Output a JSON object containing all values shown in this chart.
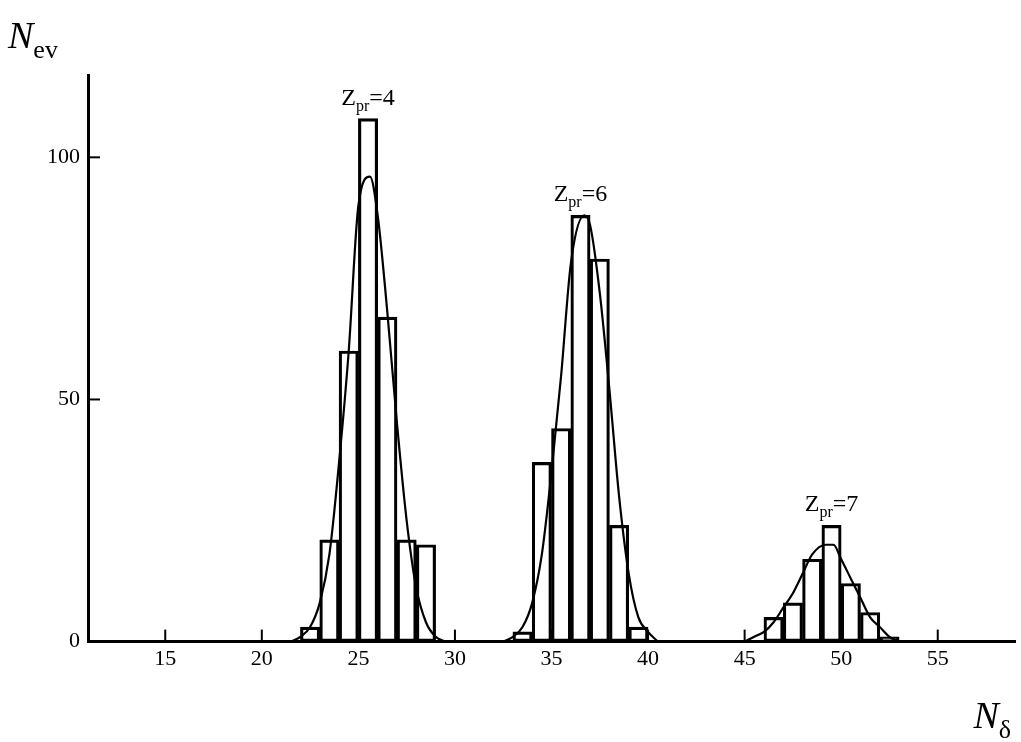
{
  "chart_data": {
    "type": "bar",
    "xlabel": "N$_{δ}$",
    "ylabel": "N$_{ev}$",
    "series": [
      {
        "color": "#000000",
        "x": [
          22.5,
          23.5,
          24.5,
          25.5,
          26.5,
          27.5,
          28.5
        ],
        "values": [
          3,
          21,
          60,
          108,
          67,
          21,
          20
        ]
      },
      {
        "color": "#000000",
        "x": [
          33.5,
          34.5,
          35.5,
          36.5,
          37.5,
          38.5,
          39.5
        ],
        "values": [
          2,
          37,
          44,
          88,
          79,
          24,
          3
        ]
      },
      {
        "color": "#000000",
        "x": [
          46.5,
          47.5,
          48.5,
          49.5,
          50.5,
          51.5,
          52.5
        ],
        "values": [
          5,
          8,
          17,
          24,
          12,
          6,
          1
        ]
      },
      {
        "type": "line",
        "color": "#000000",
        "x": [
          21.5,
          22,
          22.5,
          23,
          23.5,
          24,
          24.5,
          25,
          25.6,
          26,
          26.5,
          27,
          27.5,
          28,
          28.5,
          29,
          29.5
        ],
        "values": [
          0,
          1,
          3,
          8,
          18,
          37,
          60,
          90,
          96,
          88,
          68,
          45,
          25,
          11,
          4,
          1,
          0
        ]
      },
      {
        "type": "line",
        "color": "#000000",
        "x": [
          32.5,
          33,
          33.5,
          34,
          34.5,
          35,
          35.5,
          36,
          36.7,
          37,
          37.5,
          38,
          38.5,
          39,
          39.5,
          40,
          40.5
        ],
        "values": [
          0,
          1,
          3,
          8,
          18,
          35,
          55,
          78,
          88,
          86,
          72,
          52,
          30,
          14,
          5,
          2,
          0
        ]
      },
      {
        "type": "line",
        "color": "#000000",
        "x": [
          45,
          45.5,
          46,
          46.5,
          47,
          47.5,
          48,
          48.5,
          49.2,
          49.6,
          50,
          50.5,
          51,
          51.5,
          52,
          52.5,
          53
        ],
        "values": [
          0,
          1,
          2,
          4,
          7,
          10,
          14,
          18,
          20,
          20,
          17,
          13,
          9,
          5,
          3,
          1,
          0
        ]
      }
    ],
    "annotations": [
      {
        "text": "Z$_{pr}$=4",
        "x": 25.5,
        "y": 108
      },
      {
        "text": "Z$_{pr}$=6",
        "x": 36.5,
        "y": 88
      },
      {
        "text": "Z$_{pr}$=7",
        "x": 49.5,
        "y": 24
      }
    ],
    "xlim": [
      11,
      59
    ],
    "ylim": [
      0,
      117
    ],
    "xticks": [
      15,
      20,
      25,
      30,
      35,
      40,
      45,
      50,
      55
    ],
    "yticks": [
      0,
      50,
      100
    ],
    "grid": false,
    "legend": false,
    "marker": "none",
    "line_style": "solid"
  }
}
